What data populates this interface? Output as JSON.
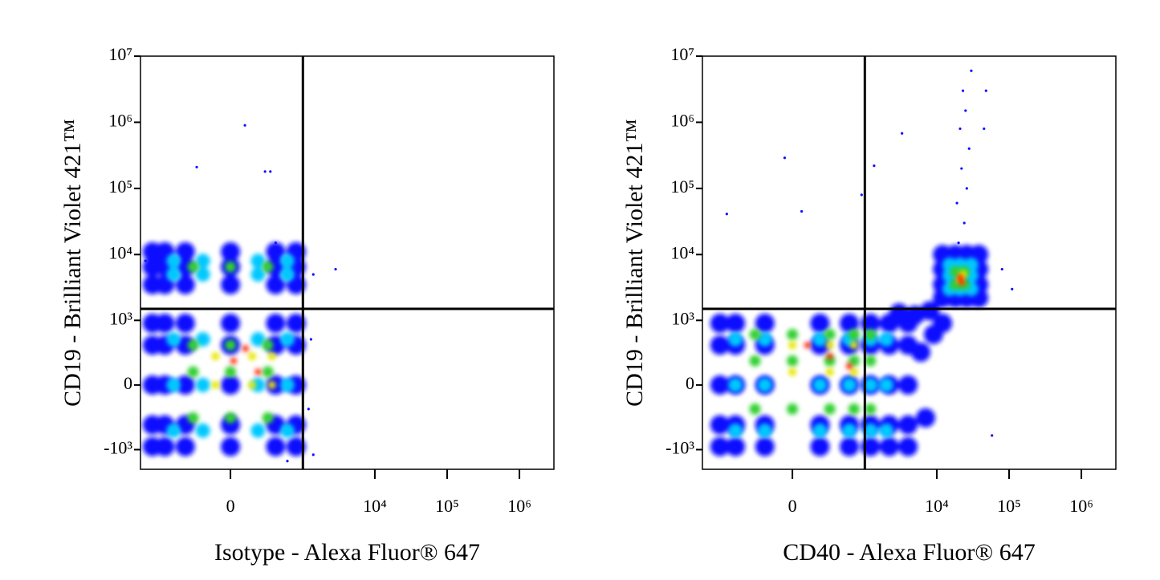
{
  "chart_data": [
    {
      "type": "scatter",
      "scale": "logicle",
      "xlabel": "Isotype - Alexa Fluor® 647",
      "ylabel": "CD19 - Brilliant Violet 421™",
      "xlim": [
        -1760,
        3000000
      ],
      "ylim": [
        -2000,
        10000000
      ],
      "xticks": [
        0,
        {
          "value": 10000,
          "label": "10⁴"
        },
        {
          "value": 100000,
          "label": "10⁵"
        },
        {
          "value": 1000000,
          "label": "10⁶"
        }
      ],
      "yticks": [
        {
          "value": -1000,
          "label": "-10³"
        },
        0,
        {
          "value": 1000,
          "label": "10³"
        },
        {
          "value": 10000,
          "label": "10⁴"
        },
        {
          "value": 100000,
          "label": "10⁵"
        },
        {
          "value": 1000000,
          "label": "10⁶"
        },
        {
          "value": 10000000,
          "label": "10⁷"
        }
      ],
      "quadrant": {
        "x": 1000,
        "y": 1500
      },
      "series": [
        {
          "color": "#1010ff",
          "x": [
            96,
            -260,
            269,
            330,
            400,
            1400,
            2860,
            1200,
            1300,
            1400,
            -1500,
            600
          ],
          "y": [
            900000,
            210000,
            180000,
            180000,
            15000,
            5000,
            6000,
            -200,
            500,
            -1200,
            8000,
            -1500
          ]
        },
        {
          "color": "#1010ff",
          "x": [
            -1200,
            -800,
            -400,
            0,
            400,
            800,
            -1200,
            -800,
            -400,
            0,
            400,
            800,
            -1200,
            -800,
            -400,
            0,
            400,
            800,
            -1200,
            -800,
            -400,
            0,
            400,
            800,
            -1200,
            -800,
            -400,
            0,
            400,
            800,
            -1200,
            -800,
            -400,
            0,
            400,
            800,
            -1200,
            -800,
            -400,
            0,
            400,
            800,
            -1200,
            -800,
            -400,
            0,
            400,
            800
          ],
          "y": [
            -900,
            -900,
            -900,
            -900,
            -900,
            -900,
            -400,
            -400,
            -400,
            -400,
            -400,
            -400,
            0,
            0,
            0,
            0,
            0,
            0,
            400,
            400,
            400,
            400,
            400,
            400,
            900,
            900,
            900,
            900,
            900,
            900,
            3500,
            3500,
            3500,
            3500,
            3500,
            3500,
            6500,
            6500,
            6500,
            6500,
            6500,
            6500,
            11000,
            11000,
            11000,
            11000,
            11000,
            11000
          ]
        },
        {
          "color": "#00c8ff",
          "x": [
            -600,
            -200,
            200,
            600,
            -600,
            -200,
            200,
            600,
            -600,
            -200,
            200,
            600,
            -600,
            -200,
            200,
            600,
            -600,
            -200,
            200,
            600
          ],
          "y": [
            -500,
            -500,
            -500,
            -500,
            0,
            0,
            0,
            0,
            500,
            500,
            500,
            500,
            5000,
            5000,
            5000,
            5000,
            8000,
            8000,
            8000,
            8000
          ]
        },
        {
          "color": "#30d030",
          "x": [
            -300,
            0,
            300,
            -300,
            0,
            300,
            -300,
            0,
            300,
            -300,
            0,
            300
          ],
          "y": [
            -300,
            -300,
            -300,
            100,
            100,
            100,
            400,
            400,
            400,
            6500,
            6500,
            6500
          ]
        },
        {
          "color": "#e8e800",
          "x": [
            -100,
            150,
            350,
            -100,
            150,
            350
          ],
          "y": [
            0,
            0,
            0,
            250,
            250,
            250
          ]
        },
        {
          "color": "#ff2000",
          "x": [
            20,
            200,
            100
          ],
          "y": [
            200,
            100,
            350
          ]
        }
      ]
    },
    {
      "type": "scatter",
      "scale": "logicle",
      "xlabel": "CD40 - Alexa Fluor® 647",
      "ylabel": "CD19 - Brilliant Violet 421™",
      "xlim": [
        -1760,
        3000000
      ],
      "ylim": [
        -2000,
        10000000
      ],
      "xticks": [
        0,
        {
          "value": 10000,
          "label": "10⁴"
        },
        {
          "value": 100000,
          "label": "10⁵"
        },
        {
          "value": 1000000,
          "label": "10⁶"
        }
      ],
      "yticks": [
        {
          "value": -1000,
          "label": "-10³"
        },
        0,
        {
          "value": 1000,
          "label": "10³"
        },
        {
          "value": 10000,
          "label": "10⁴"
        },
        {
          "value": 100000,
          "label": "10⁵"
        },
        {
          "value": 1000000,
          "label": "10⁶"
        },
        {
          "value": 10000000,
          "label": "10⁷"
        }
      ],
      "quadrant": {
        "x": 1000,
        "y": 1500
      },
      "series": [
        {
          "color": "#1010ff",
          "x": [
            20000,
            24000,
            19000,
            26000,
            22000,
            28000,
            21000,
            25000,
            23000,
            30000,
            48000,
            45000,
            -50,
            1350,
            3300,
            -800,
            900,
            60,
            80000,
            110000,
            58000
          ],
          "y": [
            15000,
            30000,
            60000,
            100000,
            200000,
            400000,
            800000,
            1500000,
            3000000,
            6000000,
            3000000,
            800000,
            290000,
            220000,
            680000,
            41000,
            80000,
            45000,
            6000,
            3000,
            -600
          ]
        },
        {
          "color": "#1010ff",
          "x": [
            -1000,
            -600,
            -200,
            200,
            600,
            1200,
            2200,
            4000,
            -1000,
            -600,
            -200,
            200,
            600,
            1200,
            2200,
            4000,
            -1000,
            -600,
            -200,
            200,
            600,
            1200,
            2200,
            4000,
            -1000,
            -600,
            -200,
            200,
            600,
            1200,
            2200,
            4000,
            -1000,
            -600,
            -200,
            200,
            600,
            1200,
            2200,
            4000,
            6000,
            9000,
            12000,
            7000,
            5000,
            3000,
            8000,
            12000,
            18000,
            26000,
            38000,
            12000,
            18000,
            26000,
            38000,
            12000,
            18000,
            26000,
            38000,
            12000,
            18000,
            26000,
            38000
          ],
          "y": [
            -900,
            -900,
            -900,
            -900,
            -900,
            -900,
            -900,
            -900,
            -400,
            -400,
            -400,
            -400,
            -400,
            -400,
            -400,
            -400,
            0,
            0,
            0,
            0,
            0,
            0,
            0,
            0,
            400,
            400,
            400,
            400,
            400,
            400,
            400,
            400,
            900,
            900,
            900,
            900,
            900,
            900,
            900,
            900,
            300,
            600,
            900,
            -300,
            1200,
            1300,
            1400,
            2200,
            2200,
            2200,
            2200,
            3500,
            3500,
            3500,
            3500,
            6000,
            6000,
            6000,
            6000,
            10000,
            10000,
            10000,
            10000
          ]
        },
        {
          "color": "#00c8ff",
          "x": [
            -600,
            -200,
            200,
            600,
            1200,
            2000,
            -600,
            -200,
            200,
            600,
            1200,
            2000,
            -600,
            -200,
            200,
            600,
            1200,
            2000,
            15000,
            21000,
            30000,
            15000,
            21000,
            30000,
            15000,
            21000,
            30000
          ],
          "y": [
            -500,
            -500,
            -500,
            -500,
            -500,
            -500,
            0,
            0,
            0,
            0,
            0,
            0,
            500,
            500,
            500,
            500,
            500,
            500,
            3000,
            3000,
            3000,
            4800,
            4800,
            4800,
            7000,
            7000,
            7000
          ]
        },
        {
          "color": "#30d030",
          "x": [
            -300,
            0,
            300,
            700,
            1200,
            -300,
            0,
            300,
            700,
            1200,
            -300,
            0,
            300,
            700,
            1200,
            18000,
            24000,
            18000,
            24000
          ],
          "y": [
            -200,
            -200,
            -200,
            -200,
            -200,
            200,
            200,
            200,
            200,
            200,
            600,
            600,
            600,
            600,
            600,
            3500,
            3500,
            5500,
            5500
          ]
        },
        {
          "color": "#e8e800",
          "x": [
            0,
            300,
            700,
            0,
            300,
            700,
            21000,
            23000
          ],
          "y": [
            100,
            100,
            100,
            400,
            400,
            400,
            4200,
            5000
          ]
        },
        {
          "color": "#ff2000",
          "x": [
            300,
            600,
            100,
            21000,
            22000
          ],
          "y": [
            250,
            150,
            400,
            4500,
            3800
          ]
        }
      ]
    }
  ]
}
